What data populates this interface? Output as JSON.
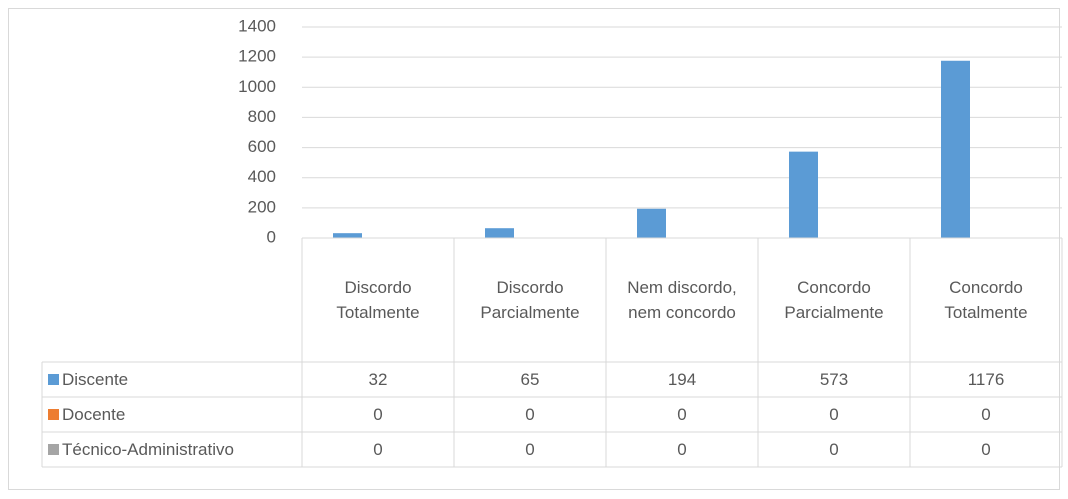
{
  "chart_data": {
    "type": "bar",
    "categories": [
      "Discordo Totalmente",
      "Discordo Parcialmente",
      "Nem discordo, nem concordo",
      "Concordo Parcialmente",
      "Concordo Totalmente"
    ],
    "series": [
      {
        "name": "Discente",
        "color": "#5b9bd5",
        "values": [
          32,
          65,
          194,
          573,
          1176
        ]
      },
      {
        "name": "Docente",
        "color": "#ed7d31",
        "values": [
          0,
          0,
          0,
          0,
          0
        ]
      },
      {
        "name": "Técnico-Administrativo",
        "color": "#a5a5a5",
        "values": [
          0,
          0,
          0,
          0,
          0
        ]
      }
    ],
    "ylim": [
      0,
      1400
    ],
    "yticks": [
      0,
      200,
      400,
      600,
      800,
      1000,
      1200,
      1400
    ],
    "grid": true,
    "data_table": true
  }
}
